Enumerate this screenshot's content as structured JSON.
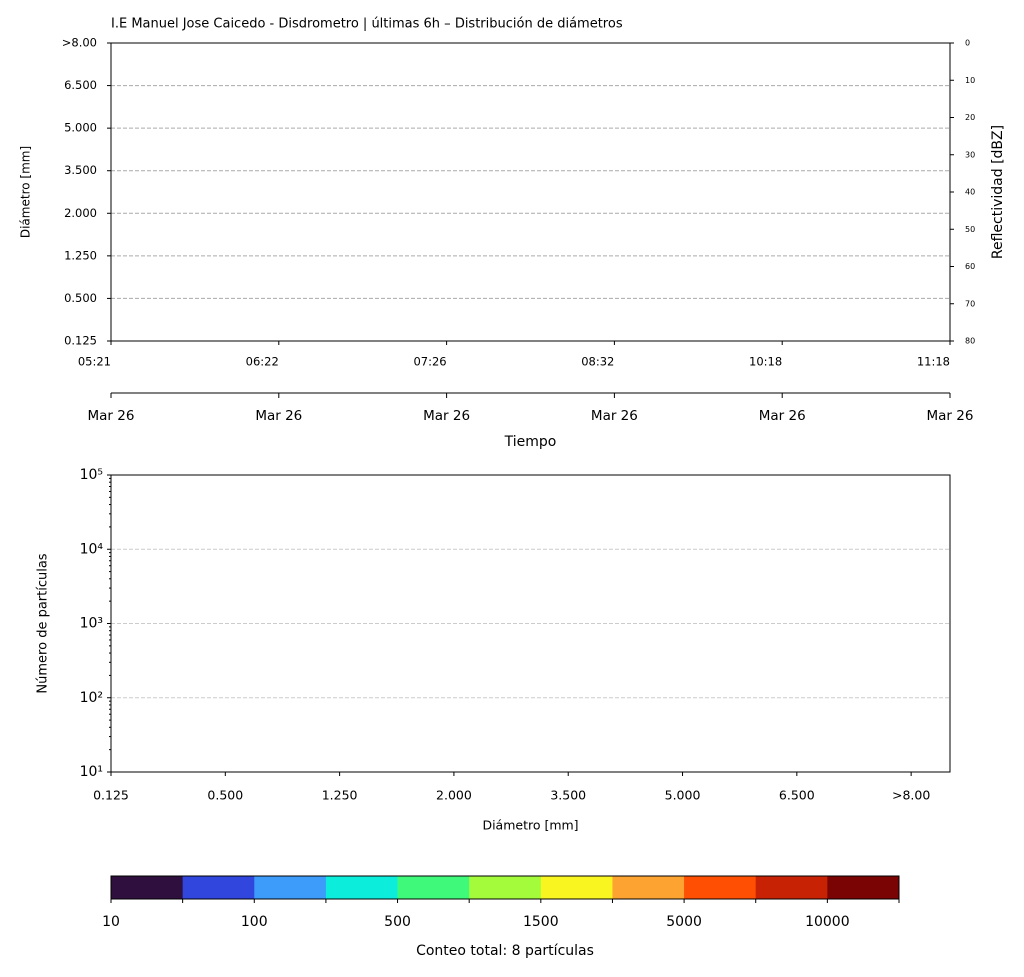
{
  "chart_data": [
    {
      "type": "heatmap",
      "title": "I.E Manuel Jose Caicedo - Disdrometro | últimas 6h – Distribución de diámetros",
      "y_categories": [
        "0.125",
        "0.500",
        "1.250",
        "2.000",
        "3.500",
        "5.000",
        "6.500",
        ">8.00"
      ],
      "ylabel": "Diámetro [mm]",
      "x": [
        "05:21",
        "06:22",
        "07:26",
        "08:32",
        "10:18",
        "11:18"
      ],
      "x2": [
        "Mar 26",
        "Mar 26",
        "Mar 26",
        "Mar 26",
        "Mar 26",
        "Mar 26"
      ],
      "xlabel": "Tiempo",
      "y2label": "Reflectividad [dBZ]",
      "y2lim": [
        0,
        80
      ],
      "y2_inverted": true,
      "y2ticks": [
        0,
        10,
        20,
        30,
        40,
        50,
        60,
        70,
        80
      ],
      "grid": true
    },
    {
      "type": "bar",
      "categories": [
        "0.125",
        "0.500",
        "1.250",
        "2.000",
        "3.500",
        "5.000",
        "6.500",
        ">8.00"
      ],
      "xlabel": "Diámetro [mm]",
      "ylabel": "Número de partículas",
      "log_y": true,
      "ylim": [
        10,
        100000
      ],
      "yticks": [
        {
          "value": 10,
          "label": "10¹"
        },
        {
          "value": 100,
          "label": "10²"
        },
        {
          "value": 1000,
          "label": "10³"
        },
        {
          "value": 10000,
          "label": "10⁴"
        },
        {
          "value": 100000,
          "label": "10⁵"
        }
      ],
      "grid": true
    },
    {
      "type": "colorbar",
      "colors": [
        "#2f0f3d",
        "#3046dc",
        "#3d9bfa",
        "#0ceedb",
        "#3ffa7a",
        "#a4fb3b",
        "#f9f520",
        "#fda331",
        "#fe4f02",
        "#c62203",
        "#7a0403"
      ],
      "ticks": [
        10,
        100,
        500,
        1500,
        5000,
        10000
      ],
      "label": "Conteo total: 8 partículas"
    }
  ]
}
